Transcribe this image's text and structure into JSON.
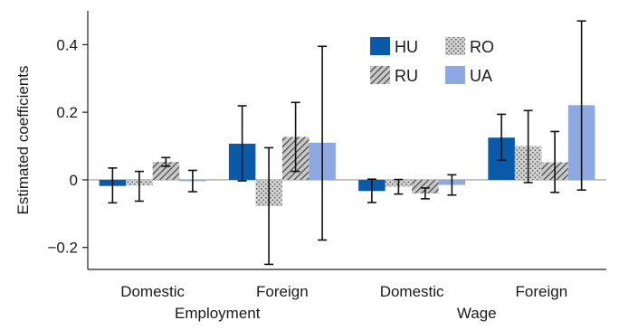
{
  "chart_data": {
    "type": "bar",
    "ylabel": "Estimated coefficients",
    "ylim": [
      -0.265,
      0.5
    ],
    "yticks": [
      -0.2,
      0,
      0.2,
      0.4
    ],
    "ytick_labels": [
      "−0.2",
      "0",
      "0.2",
      "0.4"
    ],
    "groups": [
      "Employment",
      "Wage"
    ],
    "categories": [
      "Domestic",
      "Foreign",
      "Domestic",
      "Foreign"
    ],
    "category_group": [
      0,
      0,
      1,
      1
    ],
    "series": [
      {
        "name": "HU",
        "color": "#0a5aaa",
        "pattern": "solid",
        "values": [
          -0.018,
          0.107,
          -0.033,
          0.125
        ],
        "err_low": [
          -0.068,
          -0.003,
          -0.067,
          0.058
        ],
        "err_high": [
          0.035,
          0.219,
          0.002,
          0.194
        ]
      },
      {
        "name": "RO",
        "color": "#d2d2d2",
        "pattern": "dots",
        "values": [
          -0.017,
          -0.078,
          -0.02,
          0.1
        ],
        "err_low": [
          -0.063,
          -0.25,
          -0.042,
          -0.008
        ],
        "err_high": [
          0.025,
          0.095,
          0.001,
          0.205
        ]
      },
      {
        "name": "RU",
        "color": "#c4c4c4",
        "pattern": "hatch",
        "values": [
          0.053,
          0.127,
          -0.04,
          0.052
        ],
        "err_low": [
          0.04,
          0.025,
          -0.056,
          -0.037
        ],
        "err_high": [
          0.066,
          0.229,
          -0.024,
          0.143
        ]
      },
      {
        "name": "UA",
        "color": "#8ea9e1",
        "pattern": "solid",
        "values": [
          -0.004,
          0.11,
          -0.015,
          0.221
        ],
        "err_low": [
          -0.035,
          -0.178,
          -0.045,
          -0.03
        ],
        "err_high": [
          0.028,
          0.395,
          0.015,
          0.47
        ]
      }
    ],
    "legend_position": "top-right",
    "grid": false
  }
}
